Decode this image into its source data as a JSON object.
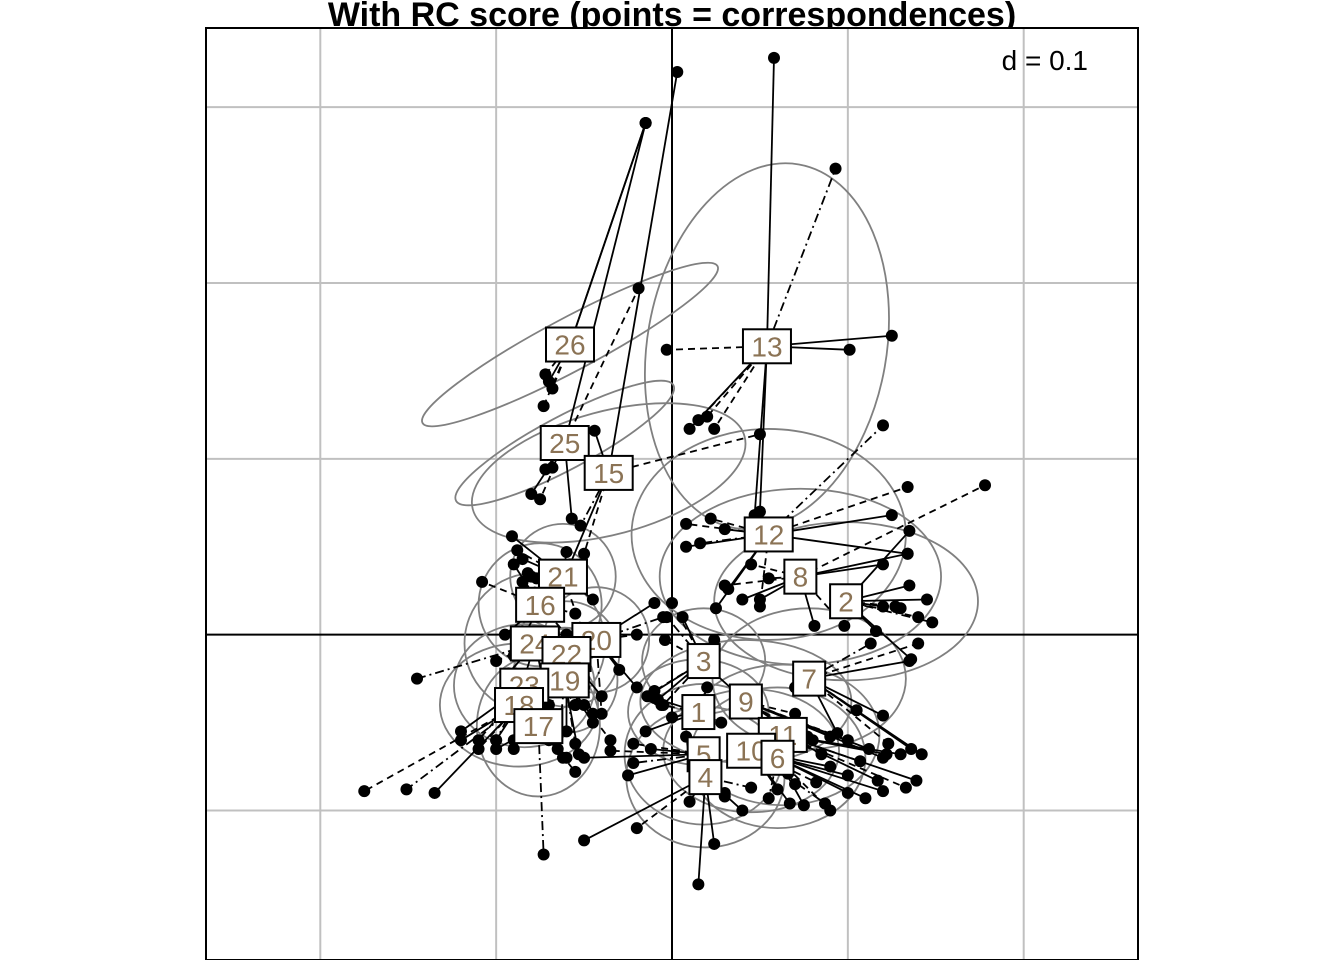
{
  "chart_data": {
    "type": "scatter",
    "title": "With RC score (points = correspondences)",
    "scale_label": "d = 0.1",
    "grid": true,
    "grid_step": 0.1,
    "xlim": [
      -0.265,
      0.265
    ],
    "ylim": [
      -0.185,
      0.345
    ],
    "axes_origin": [
      0,
      0
    ],
    "colors": {
      "line": "#000000",
      "ellipse": "#808080",
      "grid": "#c0c0c0",
      "label_text": "#8b7355",
      "point": "#000000"
    },
    "groups": [
      {
        "label": "26",
        "center": [
          -0.058,
          0.165
        ],
        "points": [
          [
            -0.015,
            0.291
          ],
          [
            -0.015,
            0.291
          ],
          [
            -0.068,
            0.14
          ],
          [
            -0.07,
            0.144
          ],
          [
            -0.072,
            0.148
          ],
          [
            -0.073,
            0.13
          ]
        ],
        "ellipse": {
          "rx": 0.015,
          "ry": 0.095,
          "angle": 62
        }
      },
      {
        "label": "25",
        "center": [
          -0.061,
          0.109
        ],
        "points": [
          [
            -0.015,
            0.291
          ],
          [
            -0.019,
            0.197
          ],
          [
            -0.068,
            0.095
          ],
          [
            -0.072,
            0.094
          ],
          [
            -0.075,
            0.077
          ],
          [
            -0.08,
            0.08
          ],
          [
            -0.057,
            0.066
          ]
        ],
        "ellipse": {
          "rx": 0.015,
          "ry": 0.07,
          "angle": 62
        }
      },
      {
        "label": "15",
        "center": [
          -0.036,
          0.092
        ],
        "points": [
          [
            0.05,
            0.114
          ],
          [
            0.003,
            0.32
          ],
          [
            -0.052,
            0.062
          ],
          [
            -0.05,
            0.046
          ],
          [
            -0.058,
            0.04
          ],
          [
            -0.044,
            0.116
          ]
        ],
        "ellipse": {
          "rx": 0.035,
          "ry": 0.08,
          "angle": 75
        }
      },
      {
        "label": "13",
        "center": [
          0.054,
          0.164
        ],
        "points": [
          [
            0.058,
            0.328
          ],
          [
            0.093,
            0.265
          ],
          [
            -0.003,
            0.162
          ],
          [
            0.125,
            0.17
          ],
          [
            0.101,
            0.162
          ],
          [
            0.02,
            0.124
          ],
          [
            0.015,
            0.122
          ],
          [
            0.01,
            0.117
          ],
          [
            0.024,
            0.117
          ],
          [
            0.047,
            0.068
          ],
          [
            0.05,
            0.07
          ]
        ],
        "ellipse": {
          "rx": 0.068,
          "ry": 0.105,
          "angle": 10
        }
      },
      {
        "label": "12",
        "center": [
          0.055,
          0.057
        ],
        "points": [
          [
            0.12,
            0.119
          ],
          [
            0.134,
            0.084
          ],
          [
            0.125,
            0.068
          ],
          [
            0.134,
            0.046
          ],
          [
            0.008,
            0.063
          ],
          [
            0.016,
            0.052
          ],
          [
            0.03,
            0.06
          ],
          [
            0.022,
            0.066
          ],
          [
            0.008,
            0.05
          ],
          [
            0.032,
            0.026
          ],
          [
            0.05,
            0.016
          ],
          [
            0.025,
            0.015
          ]
        ],
        "ellipse": {
          "rx": 0.078,
          "ry": 0.06,
          "angle": 0
        }
      },
      {
        "label": "8",
        "center": [
          0.073,
          0.033
        ],
        "points": [
          [
            0.178,
            0.085
          ],
          [
            0.134,
            0.046
          ],
          [
            0.12,
            0.04
          ],
          [
            0.045,
            0.04
          ],
          [
            0.055,
            0.032
          ],
          [
            0.05,
            0.02
          ],
          [
            0.03,
            0.028
          ],
          [
            0.04,
            0.02
          ],
          [
            0.081,
            0.005
          ],
          [
            0.098,
            0.005
          ]
        ],
        "ellipse": {
          "rx": 0.08,
          "ry": 0.05,
          "angle": 0
        }
      },
      {
        "label": "2",
        "center": [
          0.099,
          0.019
        ],
        "points": [
          [
            0.135,
            0.059
          ],
          [
            0.135,
            0.028
          ],
          [
            0.14,
            0.01
          ],
          [
            0.148,
            0.007
          ],
          [
            0.145,
            0.02
          ],
          [
            0.13,
            0.015
          ],
          [
            0.12,
            0.016
          ],
          [
            0.136,
            -0.014
          ],
          [
            0.127,
            0.016
          ],
          [
            0.116,
            0.002
          ]
        ],
        "ellipse": {
          "rx": 0.075,
          "ry": 0.045,
          "angle": 0
        }
      },
      {
        "label": "7",
        "center": [
          0.078,
          -0.025
        ],
        "points": [
          [
            0.135,
            -0.015
          ],
          [
            0.14,
            -0.005
          ],
          [
            0.113,
            -0.005
          ],
          [
            0.12,
            -0.046
          ],
          [
            0.123,
            -0.062
          ],
          [
            0.136,
            -0.065
          ],
          [
            0.142,
            -0.068
          ],
          [
            0.105,
            -0.043
          ],
          [
            0.094,
            -0.056
          ],
          [
            0.07,
            -0.03
          ]
        ],
        "ellipse": {
          "rx": 0.055,
          "ry": 0.04,
          "angle": 0
        }
      },
      {
        "label": "3",
        "center": [
          0.018,
          -0.015
        ],
        "points": [
          [
            0.0,
            0.018
          ],
          [
            -0.003,
            0.01
          ],
          [
            0.006,
            0.01
          ],
          [
            -0.004,
            -0.003
          ],
          [
            0.024,
            -0.003
          ],
          [
            0.02,
            -0.02
          ],
          [
            -0.01,
            -0.032
          ],
          [
            -0.014,
            -0.035
          ],
          [
            -0.008,
            -0.037
          ],
          [
            -0.005,
            -0.04
          ]
        ],
        "ellipse": {
          "rx": 0.035,
          "ry": 0.03,
          "angle": 0
        }
      },
      {
        "label": "9",
        "center": [
          0.042,
          -0.038
        ],
        "points": [
          [
            0.08,
            -0.06
          ],
          [
            0.09,
            -0.058
          ],
          [
            0.1,
            -0.06
          ],
          [
            0.112,
            -0.065
          ],
          [
            0.12,
            -0.07
          ],
          [
            0.07,
            -0.045
          ],
          [
            0.06,
            -0.05
          ],
          [
            0.022,
            -0.02
          ]
        ],
        "ellipse": {
          "rx": 0.06,
          "ry": 0.035,
          "angle": 0
        }
      },
      {
        "label": "1",
        "center": [
          0.015,
          -0.044
        ],
        "points": [
          [
            -0.01,
            -0.036
          ],
          [
            -0.006,
            -0.04
          ],
          [
            0.0,
            -0.047
          ],
          [
            -0.015,
            -0.055
          ],
          [
            0.008,
            -0.058
          ],
          [
            0.01,
            -0.042
          ],
          [
            0.02,
            -0.03
          ],
          [
            0.028,
            -0.05
          ]
        ],
        "ellipse": {
          "rx": 0.04,
          "ry": 0.03,
          "angle": 0
        }
      },
      {
        "label": "11",
        "center": [
          0.063,
          -0.057
        ],
        "points": [
          [
            0.107,
            -0.072
          ],
          [
            0.122,
            -0.068
          ],
          [
            0.13,
            -0.068
          ],
          [
            0.085,
            -0.068
          ],
          [
            0.077,
            -0.058
          ],
          [
            0.117,
            -0.083
          ],
          [
            0.133,
            -0.087
          ],
          [
            0.139,
            -0.083
          ]
        ],
        "ellipse": {
          "rx": 0.055,
          "ry": 0.04,
          "angle": 0
        }
      },
      {
        "label": "10",
        "center": [
          0.045,
          -0.066
        ],
        "points": [
          [
            0.09,
            -0.075
          ],
          [
            0.1,
            -0.08
          ],
          [
            0.082,
            -0.084
          ],
          [
            0.066,
            -0.079
          ],
          [
            0.06,
            -0.088
          ],
          [
            0.06,
            -0.07
          ],
          [
            0.067,
            -0.096
          ],
          [
            0.087,
            -0.096
          ]
        ],
        "ellipse": {
          "rx": 0.05,
          "ry": 0.035,
          "angle": 0
        }
      },
      {
        "label": "6",
        "center": [
          0.06,
          -0.07
        ],
        "points": [
          [
            0.1,
            -0.09
          ],
          [
            0.09,
            -0.1
          ],
          [
            0.11,
            -0.093
          ],
          [
            0.12,
            -0.089
          ],
          [
            0.07,
            -0.085
          ],
          [
            0.075,
            -0.097
          ],
          [
            0.055,
            -0.093
          ]
        ],
        "ellipse": {
          "rx": 0.05,
          "ry": 0.04,
          "angle": 0
        }
      },
      {
        "label": "5",
        "center": [
          0.018,
          -0.068
        ],
        "points": [
          [
            -0.022,
            -0.062
          ],
          [
            -0.012,
            -0.065
          ],
          [
            -0.025,
            -0.08
          ],
          [
            -0.035,
            -0.066
          ],
          [
            -0.05,
            -0.07
          ],
          [
            -0.022,
            -0.073
          ],
          [
            0.024,
            -0.083
          ],
          [
            0.03,
            -0.092
          ]
        ],
        "ellipse": {
          "rx": 0.045,
          "ry": 0.04,
          "angle": 0
        }
      },
      {
        "label": "4",
        "center": [
          0.019,
          -0.081
        ],
        "points": [
          [
            0.015,
            -0.142
          ],
          [
            0.024,
            -0.119
          ],
          [
            -0.02,
            -0.11
          ],
          [
            -0.05,
            -0.117
          ],
          [
            0.045,
            -0.087
          ],
          [
            0.03,
            -0.09
          ],
          [
            0.01,
            -0.095
          ],
          [
            0.04,
            -0.1
          ]
        ],
        "ellipse": {
          "rx": 0.045,
          "ry": 0.04,
          "angle": 0
        }
      },
      {
        "label": "21",
        "center": [
          -0.062,
          0.033
        ],
        "points": [
          [
            -0.091,
            0.056
          ],
          [
            -0.088,
            0.048
          ],
          [
            -0.085,
            0.043
          ],
          [
            -0.082,
            0.035
          ],
          [
            -0.077,
            0.032
          ],
          [
            -0.06,
            0.047
          ],
          [
            -0.045,
            0.02
          ],
          [
            -0.05,
            0.0
          ]
        ],
        "ellipse": {
          "rx": 0.03,
          "ry": 0.03,
          "angle": 0
        }
      },
      {
        "label": "16",
        "center": [
          -0.075,
          0.017
        ],
        "points": [
          [
            -0.108,
            0.03
          ],
          [
            -0.09,
            0.04
          ],
          [
            -0.085,
            0.03
          ],
          [
            -0.08,
            0.033
          ],
          [
            -0.095,
            0.0
          ],
          [
            -0.09,
            -0.012
          ],
          [
            -0.06,
            0.0
          ],
          [
            -0.055,
            0.012
          ]
        ],
        "ellipse": {
          "rx": 0.035,
          "ry": 0.035,
          "angle": 0
        }
      },
      {
        "label": "20",
        "center": [
          -0.043,
          -0.003
        ],
        "points": [
          [
            -0.01,
            0.018
          ],
          [
            -0.005,
            0.01
          ],
          [
            -0.02,
            0.0
          ],
          [
            -0.03,
            -0.02
          ],
          [
            -0.02,
            -0.03
          ],
          [
            -0.05,
            -0.03
          ],
          [
            -0.04,
            -0.045
          ],
          [
            -0.055,
            -0.04
          ]
        ],
        "ellipse": {
          "rx": 0.03,
          "ry": 0.03,
          "angle": 0
        }
      },
      {
        "label": "24",
        "center": [
          -0.078,
          -0.005
        ],
        "points": [
          [
            -0.145,
            -0.025
          ],
          [
            -0.1,
            -0.015
          ],
          [
            -0.093,
            -0.022
          ],
          [
            -0.085,
            -0.028
          ],
          [
            -0.06,
            -0.03
          ],
          [
            -0.055,
            -0.04
          ],
          [
            -0.07,
            -0.04
          ]
        ],
        "ellipse": {
          "rx": 0.04,
          "ry": 0.04,
          "angle": 0
        }
      },
      {
        "label": "22",
        "center": [
          -0.06,
          -0.011
        ],
        "points": [
          [
            -0.06,
            -0.03
          ],
          [
            -0.05,
            -0.025
          ],
          [
            -0.04,
            -0.035
          ],
          [
            -0.07,
            -0.045
          ],
          [
            -0.045,
            -0.045
          ],
          [
            -0.06,
            -0.055
          ]
        ],
        "ellipse": {
          "rx": 0.03,
          "ry": 0.03,
          "angle": 0
        }
      },
      {
        "label": "19",
        "center": [
          -0.061,
          -0.026
        ],
        "points": [
          [
            -0.05,
            -0.04
          ],
          [
            -0.045,
            -0.05
          ],
          [
            -0.035,
            -0.06
          ],
          [
            -0.055,
            -0.062
          ],
          [
            -0.053,
            -0.068
          ],
          [
            -0.065,
            -0.065
          ]
        ],
        "ellipse": {
          "rx": 0.03,
          "ry": 0.03,
          "angle": 0
        }
      },
      {
        "label": "23",
        "center": [
          -0.084,
          -0.029
        ],
        "points": [
          [
            -0.12,
            -0.055
          ],
          [
            -0.11,
            -0.06
          ],
          [
            -0.1,
            -0.06
          ],
          [
            -0.09,
            -0.065
          ],
          [
            -0.085,
            -0.055
          ],
          [
            -0.08,
            -0.05
          ],
          [
            -0.07,
            -0.045
          ]
        ],
        "ellipse": {
          "rx": 0.04,
          "ry": 0.035,
          "angle": 0
        }
      },
      {
        "label": "18",
        "center": [
          -0.087,
          -0.04
        ],
        "points": [
          [
            -0.175,
            -0.089
          ],
          [
            -0.151,
            -0.088
          ],
          [
            -0.135,
            -0.09
          ],
          [
            -0.11,
            -0.065
          ],
          [
            -0.12,
            -0.06
          ],
          [
            -0.1,
            -0.06
          ]
        ],
        "ellipse": {
          "rx": 0.045,
          "ry": 0.035,
          "angle": 0
        }
      },
      {
        "label": "17",
        "center": [
          -0.076,
          -0.052
        ],
        "points": [
          [
            -0.073,
            -0.125
          ],
          [
            -0.06,
            -0.07
          ],
          [
            -0.07,
            -0.06
          ],
          [
            -0.09,
            -0.06
          ],
          [
            -0.1,
            -0.065
          ],
          [
            -0.055,
            -0.078
          ],
          [
            -0.062,
            -0.07
          ]
        ],
        "ellipse": {
          "rx": 0.035,
          "ry": 0.04,
          "angle": 0
        }
      }
    ]
  }
}
